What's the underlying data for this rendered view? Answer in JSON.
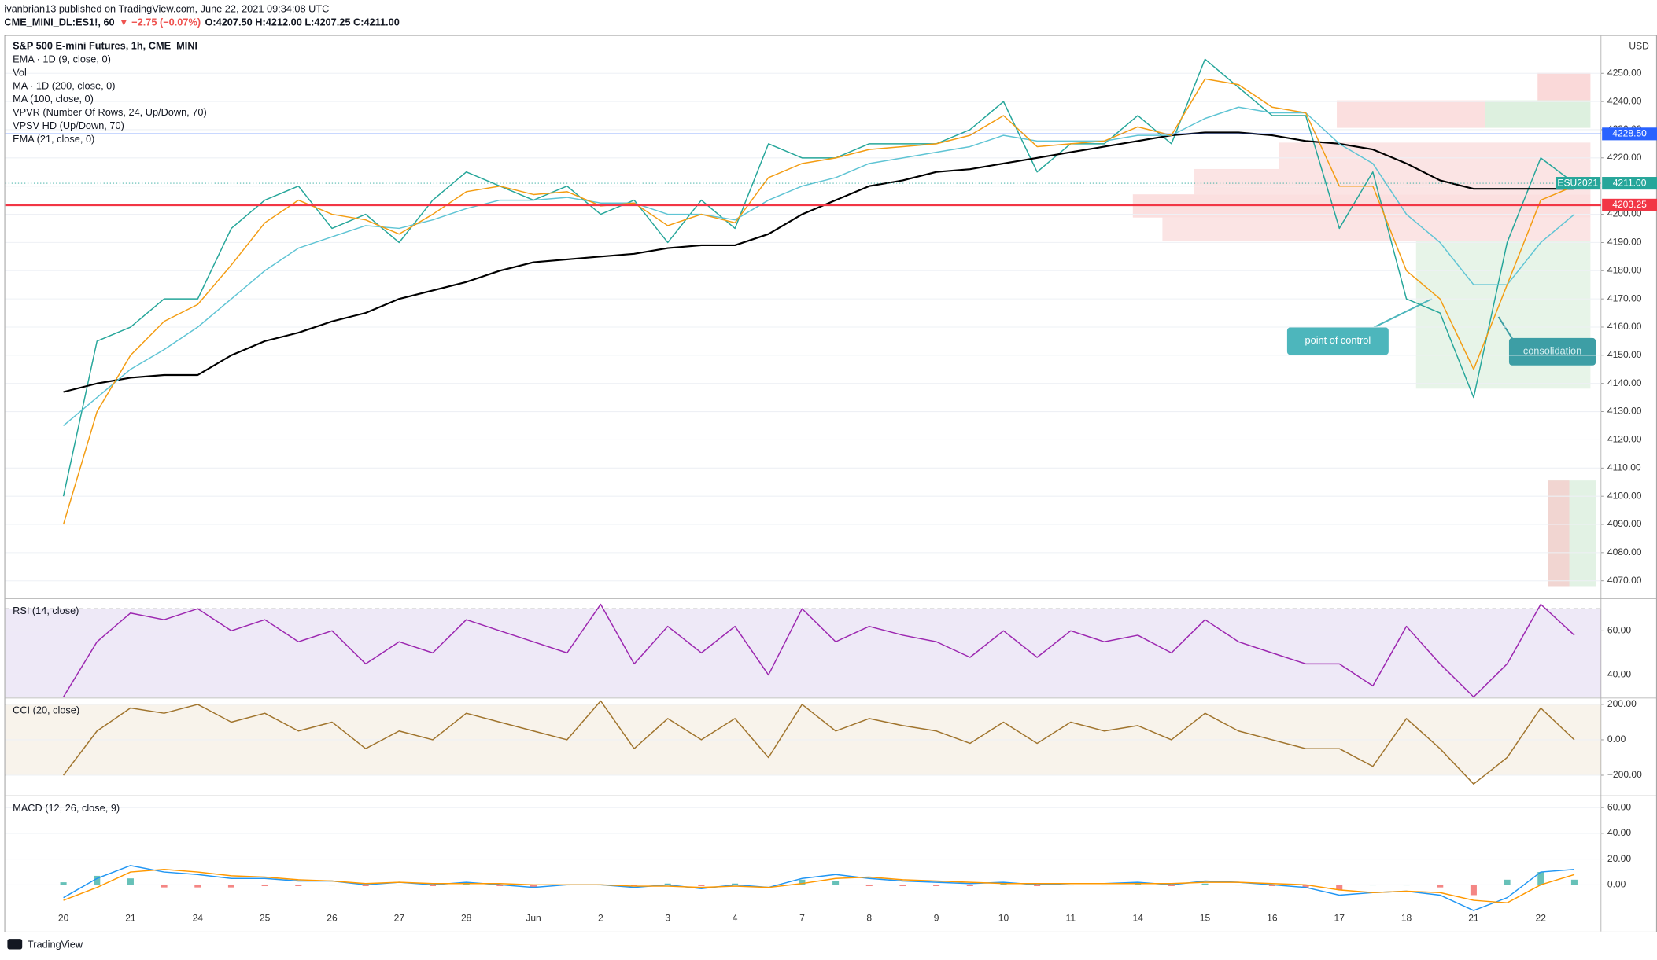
{
  "header": {
    "author_line": "ivanbrian13 published on TradingView.com, June 22, 2021 09:34:08 UTC",
    "symbol": "CME_MINI_DL:ES1!, 60",
    "change": "▼ −2.75 (−0.07%)",
    "ohlc": "O:4207.50 H:4212.00 L:4207.25 C:4211.00"
  },
  "footer": "TradingView",
  "annotations": [
    "point of control",
    "consolidation"
  ],
  "chart_data": [
    {
      "type": "line",
      "title": "S&P 500 E-mini Futures, 1h, CME_MINI",
      "legend": [
        "EMA · 1D (9, close, 0)",
        "Vol",
        "MA · 1D (200, close, 0)",
        "MA (100, close, 0)",
        "VPVR (Number Of Rows, 24, Up/Down, 70)",
        "VPSV HD (Up/Down, 70)",
        "EMA (21, close, 0)"
      ],
      "y_axis_label": "USD",
      "categories": [
        "20",
        null,
        "21",
        null,
        "24",
        null,
        "25",
        null,
        "26",
        null,
        "27",
        null,
        "28",
        null,
        "Jun",
        null,
        "2",
        null,
        "3",
        null,
        "4",
        null,
        "7",
        null,
        "8",
        null,
        "9",
        null,
        "10",
        null,
        "11",
        null,
        "14",
        null,
        "15",
        null,
        "16",
        null,
        "17",
        null,
        "18",
        null,
        "21",
        null,
        "22",
        null
      ],
      "series": [
        {
          "color": "#26a69a",
          "values": [
            4100,
            4155,
            4160,
            4170,
            4170,
            4195,
            4205,
            4210,
            4195,
            4200,
            4190,
            4205,
            4215,
            4210,
            4205,
            4210,
            4200,
            4205,
            4190,
            4205,
            4195,
            4225,
            4220,
            4220,
            4225,
            4225,
            4225,
            4230,
            4240,
            4215,
            4225,
            4225,
            4235,
            4225,
            4255,
            4245,
            4235,
            4235,
            4195,
            4215,
            4170,
            4165,
            4135,
            4190,
            4220,
            4211
          ]
        },
        {
          "color": "#000000",
          "values": [
            4137,
            4140,
            4142,
            4143,
            4143,
            4150,
            4155,
            4158,
            4162,
            4165,
            4170,
            4173,
            4176,
            4180,
            4183,
            4184,
            4185,
            4186,
            4188,
            4189,
            4189,
            4193,
            4200,
            4205,
            4210,
            4212,
            4215,
            4216,
            4218,
            4220,
            4222,
            4224,
            4226,
            4228,
            4229,
            4229,
            4228,
            4226,
            4225,
            4223,
            4218,
            4212,
            4209,
            4209,
            4209,
            4209
          ]
        },
        {
          "color": "#5fc4d4",
          "values": [
            4125,
            4135,
            4145,
            4152,
            4160,
            4170,
            4180,
            4188,
            4192,
            4196,
            4195,
            4198,
            4202,
            4205,
            4205,
            4206,
            4204,
            4204,
            4200,
            4200,
            4198,
            4205,
            4210,
            4213,
            4218,
            4220,
            4222,
            4224,
            4228,
            4226,
            4226,
            4226,
            4228,
            4228,
            4234,
            4238,
            4236,
            4236,
            4225,
            4218,
            4200,
            4190,
            4175,
            4175,
            4190,
            4200
          ]
        },
        {
          "color": "#f39c12",
          "values": [
            4090,
            4130,
            4150,
            4162,
            4168,
            4182,
            4197,
            4205,
            4200,
            4198,
            4193,
            4200,
            4208,
            4210,
            4207,
            4208,
            4203,
            4204,
            4196,
            4200,
            4197,
            4213,
            4218,
            4220,
            4223,
            4224,
            4225,
            4228,
            4235,
            4224,
            4225,
            4226,
            4231,
            4228,
            4248,
            4246,
            4238,
            4236,
            4210,
            4210,
            4180,
            4170,
            4145,
            4175,
            4205,
            4210
          ]
        }
      ],
      "ylim": [
        4064,
        4261
      ],
      "yticks": [
        {
          "value": 4070,
          "label": "4070.00"
        },
        {
          "value": 4080,
          "label": "4080.00"
        },
        {
          "value": 4090,
          "label": "4090.00"
        },
        {
          "value": 4100,
          "label": "4100.00"
        },
        {
          "value": 4110,
          "label": "4110.00"
        },
        {
          "value": 4120,
          "label": "4120.00"
        },
        {
          "value": 4130,
          "label": "4130.00"
        },
        {
          "value": 4140,
          "label": "4140.00"
        },
        {
          "value": 4150,
          "label": "4150.00"
        },
        {
          "value": 4160,
          "label": "4160.00"
        },
        {
          "value": 4170,
          "label": "4170.00"
        },
        {
          "value": 4180,
          "label": "4180.00"
        },
        {
          "value": 4190,
          "label": "4190.00"
        },
        {
          "value": 4200,
          "label": "4200.00"
        },
        {
          "value": 4210,
          "label": "4210.00"
        },
        {
          "value": 4220,
          "label": "4220.00"
        },
        {
          "value": 4230,
          "label": "4230.00"
        },
        {
          "value": 4240,
          "label": "4240.00"
        },
        {
          "value": 4250,
          "label": "4250.00"
        }
      ],
      "levels": [
        {
          "value": 4228.5,
          "label": "4228.50",
          "color": "#2962ff"
        },
        {
          "value": 4203.25,
          "label": "4203.25",
          "color": "#f23645"
        }
      ],
      "last_price": {
        "symbol": "ESU2021",
        "value": 4211,
        "label": "4211.00",
        "color": "#26a69a"
      },
      "grid": true
    },
    {
      "type": "line",
      "title": "RSI (14, close)",
      "series": [
        {
          "color": "#9c27b0",
          "values": [
            30,
            55,
            68,
            65,
            70,
            60,
            65,
            55,
            60,
            45,
            55,
            50,
            65,
            60,
            55,
            50,
            72,
            45,
            62,
            50,
            62,
            40,
            70,
            55,
            62,
            58,
            55,
            48,
            60,
            48,
            60,
            55,
            58,
            50,
            65,
            55,
            50,
            45,
            45,
            35,
            62,
            45,
            30,
            45,
            72,
            58
          ]
        }
      ],
      "ylim": [
        30,
        74
      ],
      "yticks": [
        {
          "value": 40,
          "label": "40.00"
        },
        {
          "value": 60,
          "label": "60.00"
        }
      ],
      "band": [
        30,
        70
      ],
      "band_color": "#7e57c2",
      "grid": true
    },
    {
      "type": "line",
      "title": "CCI (20, close)",
      "series": [
        {
          "color": "#a0742d",
          "values": [
            -200,
            50,
            180,
            150,
            200,
            100,
            150,
            50,
            100,
            -50,
            50,
            0,
            150,
            100,
            50,
            0,
            220,
            -50,
            120,
            0,
            120,
            -100,
            200,
            50,
            120,
            80,
            50,
            -20,
            100,
            -20,
            100,
            50,
            80,
            0,
            150,
            50,
            0,
            -50,
            -50,
            -150,
            120,
            -50,
            -250,
            -100,
            180,
            0
          ]
        }
      ],
      "ylim": [
        -307,
        230
      ],
      "yticks": [
        {
          "value": 200,
          "label": "200.00"
        },
        {
          "value": 0,
          "label": "0.00"
        },
        {
          "value": -200,
          "label": "−200.00"
        }
      ],
      "band": [
        -200,
        200
      ],
      "band_color": "#c8a064",
      "grid": true
    },
    {
      "type": "line",
      "title": "MACD (12, 26, close, 9)",
      "series": [
        {
          "style": "bar",
          "color": "#26a69a",
          "negative_color": "#ef5350",
          "values": [
            2,
            7,
            5,
            -2,
            -2,
            -2,
            -1,
            -1,
            0,
            -1,
            0,
            -1,
            1,
            -1,
            -2,
            0,
            0,
            -1,
            1,
            -1,
            1,
            0,
            4,
            3,
            -1,
            -1,
            -1,
            -1,
            1,
            -1,
            0,
            0,
            1,
            -1,
            1,
            0,
            -1,
            -2,
            -4,
            0,
            0,
            -2,
            -8,
            4,
            10,
            4
          ]
        },
        {
          "color": "#2196f3",
          "values": [
            -10,
            5,
            15,
            10,
            8,
            5,
            5,
            3,
            3,
            0,
            2,
            0,
            2,
            0,
            -2,
            0,
            0,
            -2,
            0,
            -3,
            0,
            -2,
            5,
            8,
            5,
            3,
            2,
            1,
            2,
            0,
            1,
            1,
            2,
            0,
            3,
            2,
            0,
            -2,
            -8,
            -6,
            -5,
            -8,
            -20,
            -10,
            10,
            12
          ]
        },
        {
          "color": "#ff9800",
          "values": [
            -12,
            -2,
            10,
            12,
            10,
            7,
            6,
            4,
            3,
            1,
            2,
            1,
            1,
            1,
            0,
            0,
            0,
            -1,
            -1,
            -2,
            -1,
            -2,
            1,
            5,
            6,
            4,
            3,
            2,
            1,
            1,
            1,
            1,
            1,
            1,
            2,
            2,
            1,
            0,
            -4,
            -6,
            -5,
            -6,
            -12,
            -14,
            0,
            8
          ]
        }
      ],
      "ylim": [
        -34.6,
        68
      ],
      "yticks": [
        {
          "value": 60,
          "label": "60.00"
        },
        {
          "value": 40,
          "label": "40.00"
        },
        {
          "value": 20,
          "label": "20.00"
        },
        {
          "value": 0,
          "label": "0.00"
        }
      ],
      "grid": true
    }
  ]
}
